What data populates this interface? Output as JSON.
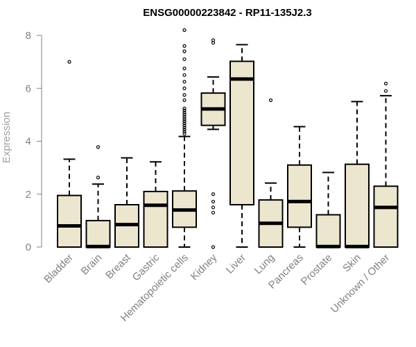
{
  "chart_data": {
    "type": "box",
    "title": "ENSG00000223842 - RP11-135J2.3",
    "xlabel": "",
    "ylabel": "Expression",
    "ylim": [
      0,
      8
    ],
    "yticks": [
      0,
      2,
      4,
      6,
      8
    ],
    "grid": false,
    "box_fill": "#EDE6CF",
    "box_stroke": "#000000",
    "categories": [
      "Bladder",
      "Brain",
      "Breast",
      "Gastric",
      "Hematopoietic cells",
      "Kidney",
      "Liver",
      "Lung",
      "Pancreas",
      "Prostate",
      "Skin",
      "Unknown / Other"
    ],
    "boxes": [
      {
        "whisker_low": 0,
        "q1": 0,
        "median": 0.8,
        "q3": 1.95,
        "whisker_high": 3.32,
        "outliers": [
          7.0
        ]
      },
      {
        "whisker_low": 0,
        "q1": 0,
        "median": 0.02,
        "q3": 1.0,
        "whisker_high": 2.38,
        "outliers": [
          2.63,
          3.78
        ]
      },
      {
        "whisker_low": 0,
        "q1": 0,
        "median": 0.85,
        "q3": 1.6,
        "whisker_high": 3.37,
        "outliers": []
      },
      {
        "whisker_low": 0,
        "q1": 0,
        "median": 1.58,
        "q3": 2.1,
        "whisker_high": 3.22,
        "outliers": []
      },
      {
        "whisker_low": 0,
        "q1": 0.75,
        "median": 1.4,
        "q3": 2.12,
        "whisker_high": 4.18,
        "outliers": [
          4.28,
          4.36,
          4.44,
          4.52,
          4.6,
          4.68,
          4.76,
          4.84,
          4.92,
          5.0,
          5.08,
          5.16,
          5.24,
          5.55,
          5.75,
          6.0,
          6.25,
          6.5,
          6.75,
          7.1,
          7.4,
          7.6,
          8.2
        ]
      },
      {
        "whisker_low": 4.45,
        "q1": 4.6,
        "median": 5.22,
        "q3": 5.82,
        "whisker_high": 6.43,
        "outliers": [
          0.0,
          1.3,
          1.5,
          1.72,
          2.0,
          7.72,
          7.82
        ]
      },
      {
        "whisker_low": 0,
        "q1": 1.6,
        "median": 6.35,
        "q3": 7.02,
        "whisker_high": 7.65,
        "outliers": []
      },
      {
        "whisker_low": 0,
        "q1": 0,
        "median": 0.9,
        "q3": 1.78,
        "whisker_high": 2.42,
        "outliers": [
          5.55
        ]
      },
      {
        "whisker_low": 0,
        "q1": 0.75,
        "median": 1.72,
        "q3": 3.1,
        "whisker_high": 4.55,
        "outliers": []
      },
      {
        "whisker_low": 0,
        "q1": 0,
        "median": 0.02,
        "q3": 1.22,
        "whisker_high": 2.82,
        "outliers": []
      },
      {
        "whisker_low": 0,
        "q1": 0,
        "median": 0.02,
        "q3": 3.13,
        "whisker_high": 5.5,
        "outliers": []
      },
      {
        "whisker_low": 0,
        "q1": 0,
        "median": 1.5,
        "q3": 2.3,
        "whisker_high": 5.72,
        "outliers": [
          5.9,
          6.18
        ]
      }
    ]
  }
}
